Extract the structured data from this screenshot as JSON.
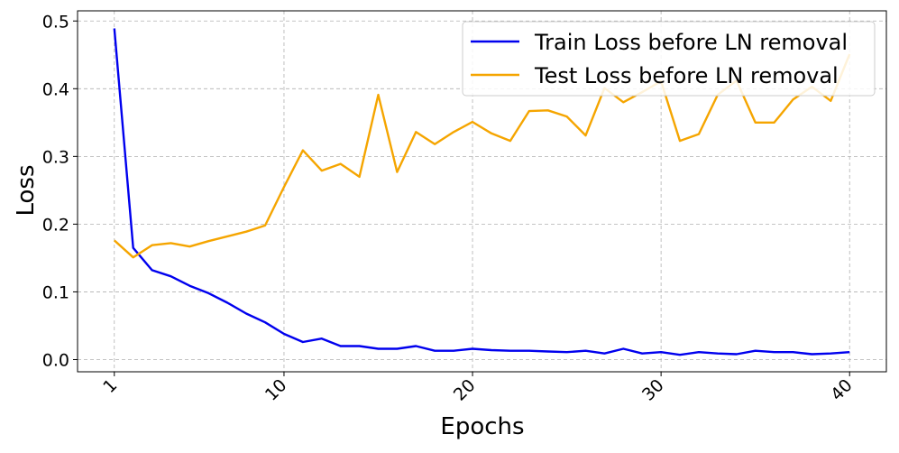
{
  "chart_data": {
    "type": "line",
    "title": "",
    "xlabel": "Epochs",
    "ylabel": "Loss",
    "xlim": [
      -0.95,
      41.95
    ],
    "ylim": [
      -0.018,
      0.515
    ],
    "xticks": [
      1,
      10,
      20,
      30,
      40
    ],
    "xtick_labels": [
      "1",
      "10",
      "20",
      "30",
      "40"
    ],
    "yticks": [
      0.0,
      0.1,
      0.2,
      0.3,
      0.4,
      0.5
    ],
    "ytick_labels": [
      "0.0",
      "0.1",
      "0.2",
      "0.3",
      "0.4",
      "0.5"
    ],
    "grid": true,
    "legend_position": "upper right",
    "x": [
      1,
      2,
      3,
      4,
      5,
      6,
      7,
      8,
      9,
      10,
      11,
      12,
      13,
      14,
      15,
      16,
      17,
      18,
      19,
      20,
      21,
      22,
      23,
      24,
      25,
      26,
      27,
      28,
      29,
      30,
      31,
      32,
      33,
      34,
      35,
      36,
      37,
      38,
      39,
      40
    ],
    "series": [
      {
        "name": "Train Loss before LN removal",
        "color": "#0000ee",
        "values": [
          0.489,
          0.165,
          0.132,
          0.123,
          0.109,
          0.098,
          0.084,
          0.068,
          0.055,
          0.038,
          0.026,
          0.031,
          0.02,
          0.02,
          0.016,
          0.016,
          0.02,
          0.013,
          0.013,
          0.016,
          0.014,
          0.013,
          0.013,
          0.012,
          0.011,
          0.013,
          0.009,
          0.016,
          0.009,
          0.011,
          0.007,
          0.011,
          0.009,
          0.008,
          0.013,
          0.011,
          0.011,
          0.008,
          0.009,
          0.011
        ]
      },
      {
        "name": "Test Loss before LN removal",
        "color": "#f5a500",
        "values": [
          0.176,
          0.151,
          0.169,
          0.172,
          0.167,
          0.175,
          0.182,
          0.189,
          0.198,
          0.255,
          0.309,
          0.279,
          0.289,
          0.27,
          0.391,
          0.277,
          0.336,
          0.318,
          0.336,
          0.351,
          0.334,
          0.323,
          0.367,
          0.368,
          0.359,
          0.331,
          0.401,
          0.38,
          0.395,
          0.411,
          0.323,
          0.333,
          0.391,
          0.412,
          0.35,
          0.35,
          0.384,
          0.403,
          0.382,
          0.451
        ]
      }
    ]
  }
}
